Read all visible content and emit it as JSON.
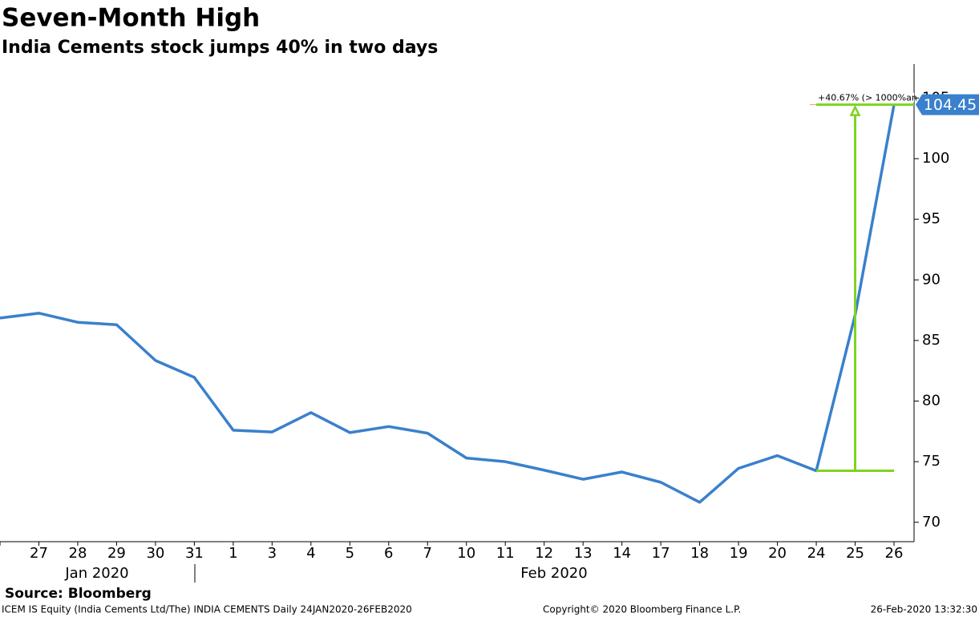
{
  "chart_data": {
    "type": "line",
    "title": "Seven-Month High",
    "subtitle": "India Cements stock jumps 40% in two days",
    "categories": [
      null,
      "27",
      "28",
      "29",
      "30",
      "31",
      "1",
      "3",
      "4",
      "5",
      "6",
      "7",
      "10",
      "11",
      "12",
      "13",
      "14",
      "17",
      "18",
      "19",
      "20",
      "24",
      "25",
      "26"
    ],
    "period_labels": [
      "Jan 2020",
      "Feb 2020"
    ],
    "series": [
      {
        "name": "INDIA CEMENTS",
        "color": "#3a80cc",
        "values": [
          86.85,
          87.25,
          86.5,
          86.3,
          83.35,
          81.95,
          77.6,
          77.45,
          79.05,
          77.4,
          77.9,
          77.35,
          75.3,
          75.0,
          74.3,
          73.55,
          74.15,
          73.3,
          71.65,
          74.45,
          75.5,
          74.25,
          87.1,
          104.45
        ]
      }
    ],
    "ylim": [
      68.4,
      107.8
    ],
    "yticks": [
      70,
      75,
      80,
      85,
      90,
      95,
      100,
      105
    ],
    "annotation": {
      "text": "+40.67% (> 1000%an",
      "color": "#7ed321"
    },
    "source": "Source: Bloomberg",
    "footer_left": "ICEM IS Equity (India Cements Ltd/The) INDIA CEMENTS  Daily 24JAN2020-26FEB2020",
    "footer_center": "Copyright© 2020 Bloomberg Finance L.P.",
    "footer_right": "26-Feb-2020 13:32:30"
  }
}
